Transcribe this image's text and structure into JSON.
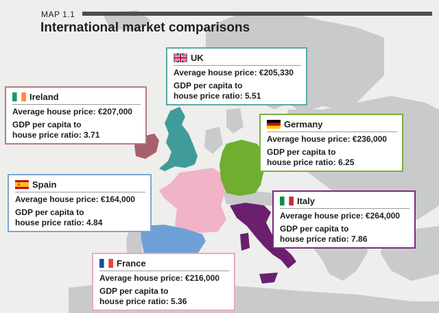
{
  "header": {
    "label": "MAP 1.1",
    "title": "International market comparisons"
  },
  "cards": {
    "uk": {
      "country": "UK",
      "price_line": "Average house price: €205,330",
      "ratio_line1": "GDP per capita to",
      "ratio_line2": "house price ratio: 5.51",
      "border_color": "#5aa9a4",
      "flag_icon": "uk-flag-icon"
    },
    "ireland": {
      "country": "Ireland",
      "price_line": "Average house price: €207,000",
      "ratio_line1": "GDP per capita to",
      "ratio_line2": "house price ratio: 3.71",
      "border_color": "#b77a86",
      "flag_icon": "ireland-flag-icon"
    },
    "germany": {
      "country": "Germany",
      "price_line": "Average house price: €236,000",
      "ratio_line1": "GDP per capita to",
      "ratio_line2": "house price ratio: 6.25",
      "border_color": "#78b03c",
      "flag_icon": "germany-flag-icon"
    },
    "spain": {
      "country": "Spain",
      "price_line": "Average house price: €164,000",
      "ratio_line1": "GDP per capita to",
      "ratio_line2": "house price ratio: 4.84",
      "border_color": "#7aa6d4",
      "flag_icon": "spain-flag-icon"
    },
    "italy": {
      "country": "Italy",
      "price_line": "Average house price: €264,000",
      "ratio_line1": "GDP per capita to",
      "ratio_line2": "house price ratio: 7.86",
      "border_color": "#7a2b7e",
      "flag_icon": "italy-flag-icon"
    },
    "france": {
      "country": "France",
      "price_line": "Average house price: €216,000",
      "ratio_line1": "GDP per capita to",
      "ratio_line2": "house price ratio: 5.36",
      "border_color": "#e8a9be",
      "flag_icon": "france-flag-icon"
    }
  },
  "map": {
    "land_color": "#c9cacc",
    "sea_color": "#eeeeec",
    "highlight_colors": {
      "uk": "#3f9c98",
      "ireland": "#a8606d",
      "france": "#f0b3c7",
      "germany": "#6fae2f",
      "spain": "#6e9fd6",
      "italy": "#6b1f6f"
    }
  }
}
